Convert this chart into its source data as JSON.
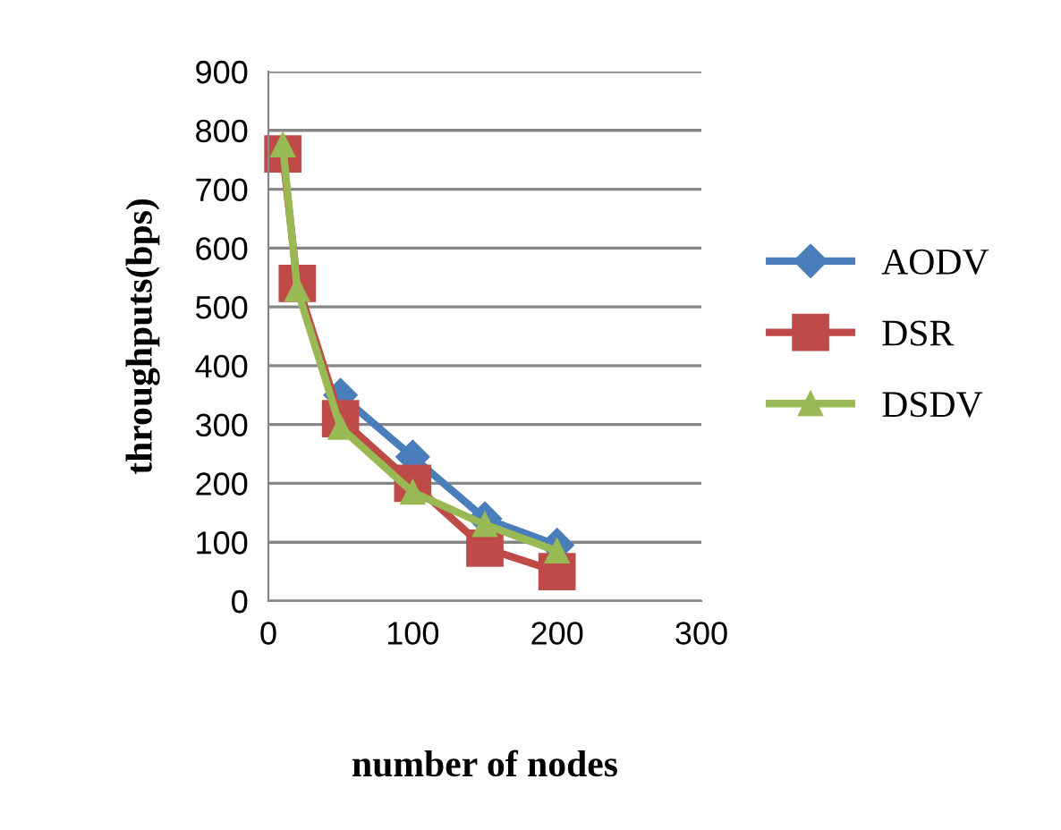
{
  "chart_data": {
    "type": "line",
    "xlabel": "number of nodes",
    "ylabel": "throughputs(bps)",
    "xlim": [
      0,
      300
    ],
    "xticks": [
      0,
      100,
      200,
      300
    ],
    "ylim": [
      0,
      900
    ],
    "yticks": [
      0,
      100,
      200,
      300,
      400,
      500,
      600,
      700,
      800,
      900
    ],
    "grid": "y",
    "legend": "right",
    "line_style": "solid",
    "series": [
      {
        "name": "AODV",
        "color": "#4a7ebb",
        "marker": "diamond",
        "x": [
          50,
          100,
          150,
          200
        ],
        "values": [
          350,
          245,
          140,
          95
        ]
      },
      {
        "name": "DSR",
        "color": "#be4b48",
        "marker": "square",
        "x": [
          10,
          20,
          50,
          100,
          150,
          200
        ],
        "values": [
          760,
          540,
          310,
          200,
          90,
          50
        ]
      },
      {
        "name": "DSDV",
        "color": "#98b954",
        "marker": "triangle",
        "x": [
          10,
          20,
          50,
          100,
          150,
          200
        ],
        "values": [
          775,
          530,
          295,
          185,
          130,
          85
        ]
      }
    ]
  }
}
